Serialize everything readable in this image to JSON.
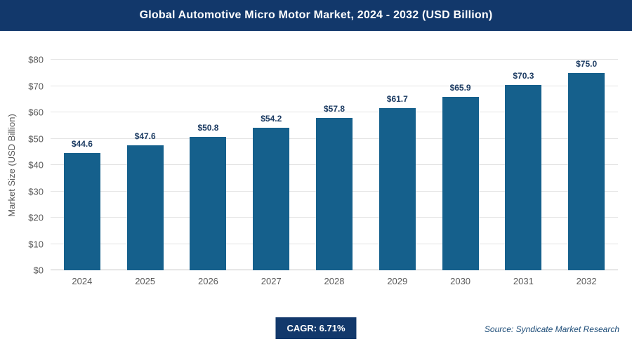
{
  "header": {
    "title": "Global Automotive Micro Motor Market, 2024 - 2032 (USD Billion)"
  },
  "chart_data": {
    "type": "bar",
    "title": "Global Automotive Micro Motor Market, 2024 - 2032 (USD Billion)",
    "categories": [
      "2024",
      "2025",
      "2026",
      "2027",
      "2028",
      "2029",
      "2030",
      "2031",
      "2032"
    ],
    "values": [
      44.6,
      47.6,
      50.8,
      54.2,
      57.8,
      61.7,
      65.9,
      70.3,
      75.0
    ],
    "value_labels": [
      "$44.6",
      "$47.6",
      "$50.8",
      "$54.2",
      "$57.8",
      "$61.7",
      "$65.9",
      "$70.3",
      "$75.0"
    ],
    "xlabel": "",
    "ylabel": "Market Size (USD Billion)",
    "ylim": [
      0,
      80
    ],
    "ytick_step": 10,
    "ytick_prefix": "$",
    "ytick_labels": [
      "$0",
      "$10",
      "$20",
      "$30",
      "$40",
      "$50",
      "$60",
      "$70",
      "$80"
    ],
    "grid": "horizontal",
    "legend": "none",
    "bar_color": "#15608c"
  },
  "footer": {
    "cagr": "CAGR: 6.71%",
    "source": "Source: Syndicate Market Research"
  },
  "colors": {
    "title_bar_bg": "#12386b",
    "title_bar_text": "#ffffff",
    "bar": "#15608c",
    "value_label": "#1d3c63",
    "axis_text": "#595959",
    "gridline": "#e3e3e3",
    "badge_bg": "#12386b",
    "source_text": "#1f4e79"
  }
}
